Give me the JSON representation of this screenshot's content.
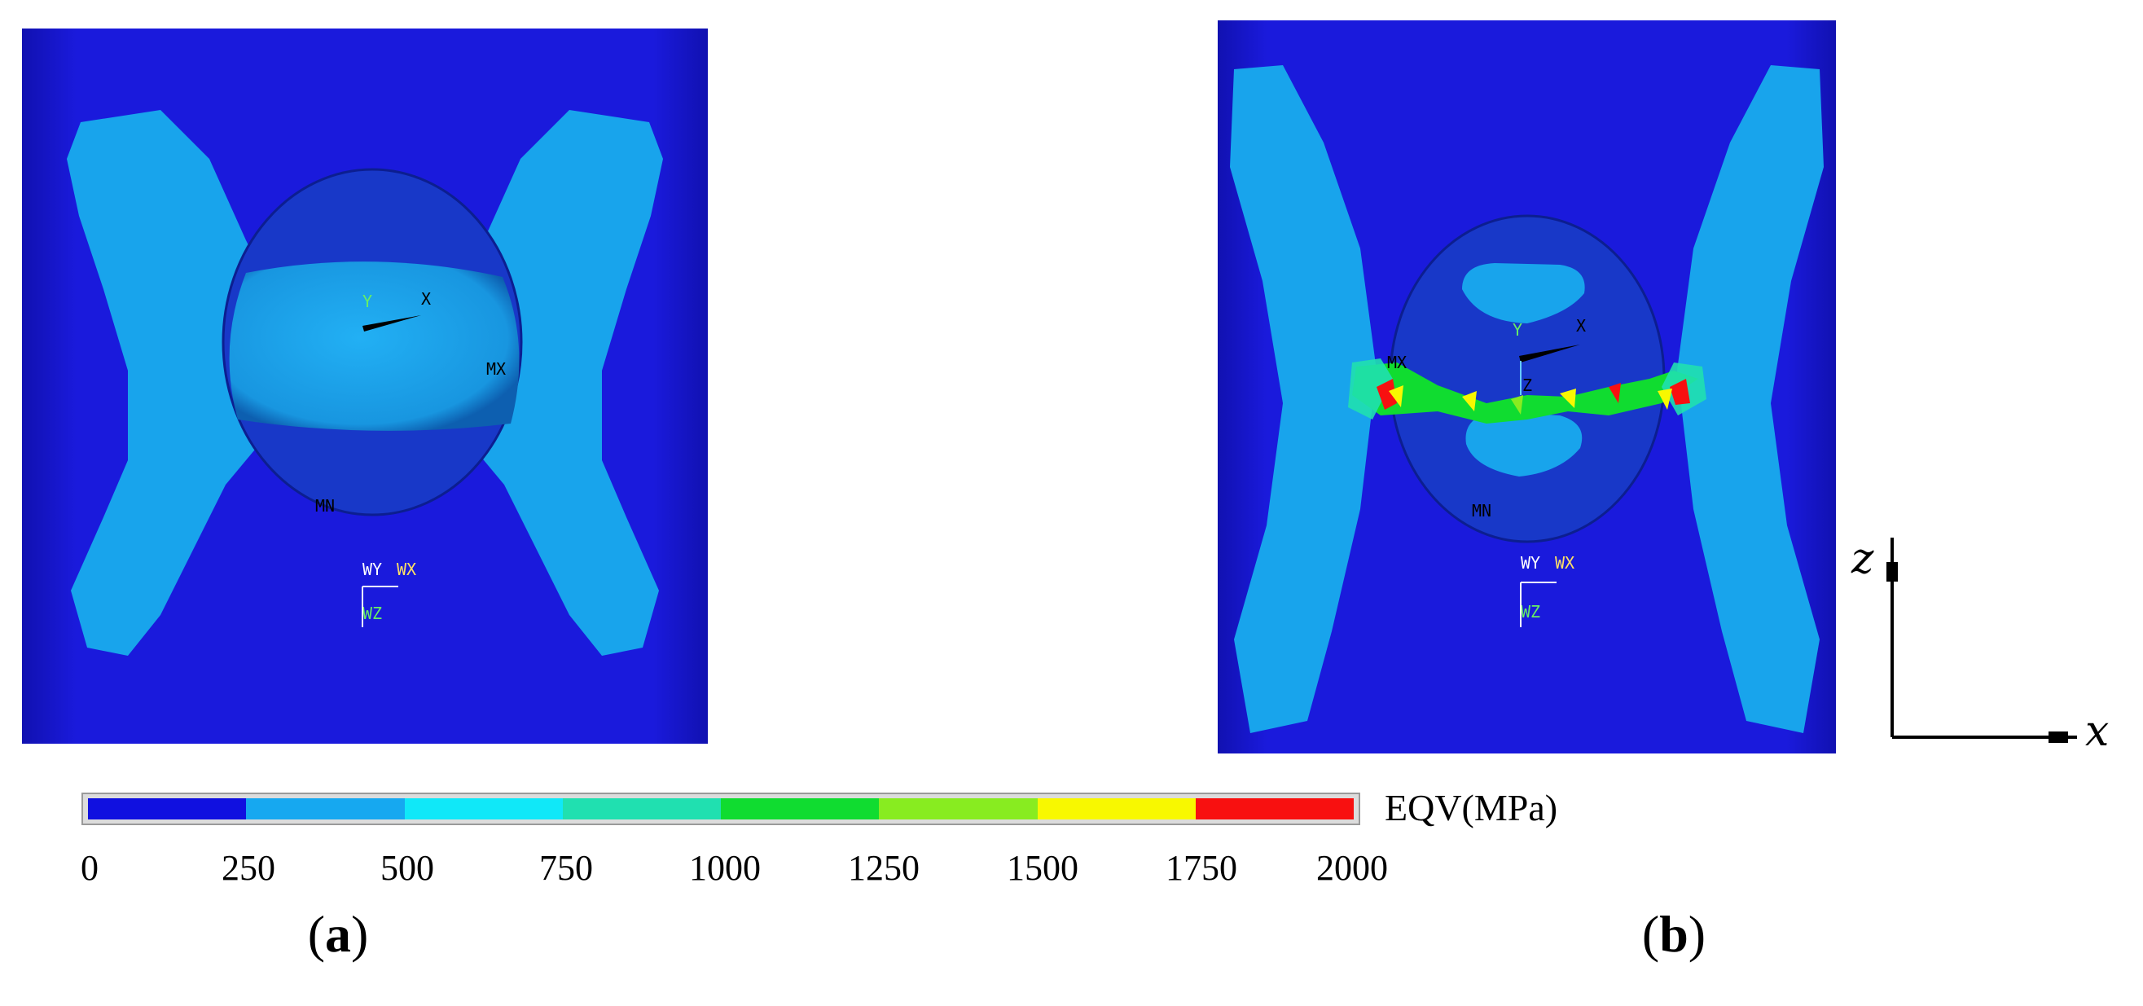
{
  "panel_a": {
    "label_open": "(",
    "label_letter": "a",
    "label_close": ")",
    "triad": {
      "y": "Y",
      "x": "X"
    },
    "mx": "MX",
    "mn": "MN",
    "workplane": {
      "wy": "WY",
      "wx": "WX",
      "wz": "WZ"
    }
  },
  "panel_b": {
    "label_open": "(",
    "label_letter": "b",
    "label_close": ")",
    "triad": {
      "y": "Y",
      "x": "X",
      "z": "Z"
    },
    "mx": "MX",
    "mn": "MN",
    "workplane": {
      "wy": "WY",
      "wx": "WX",
      "wz": "WZ"
    }
  },
  "legend": {
    "unit": "EQV(MPa)",
    "ticks": [
      "0",
      "250",
      "500",
      "750",
      "1000",
      "1250",
      "1500",
      "1750",
      "2000"
    ],
    "colors": [
      "#1010e0",
      "#16a8f0",
      "#10e8f8",
      "#20e0b0",
      "#10dc30",
      "#88ec20",
      "#f8f800",
      "#f81010"
    ]
  },
  "axes_indicator": {
    "z": "z",
    "x": "x"
  },
  "colors": {
    "background": "#1a1adc",
    "region": "#18a4ec",
    "sphere": "#1a9fe8"
  }
}
